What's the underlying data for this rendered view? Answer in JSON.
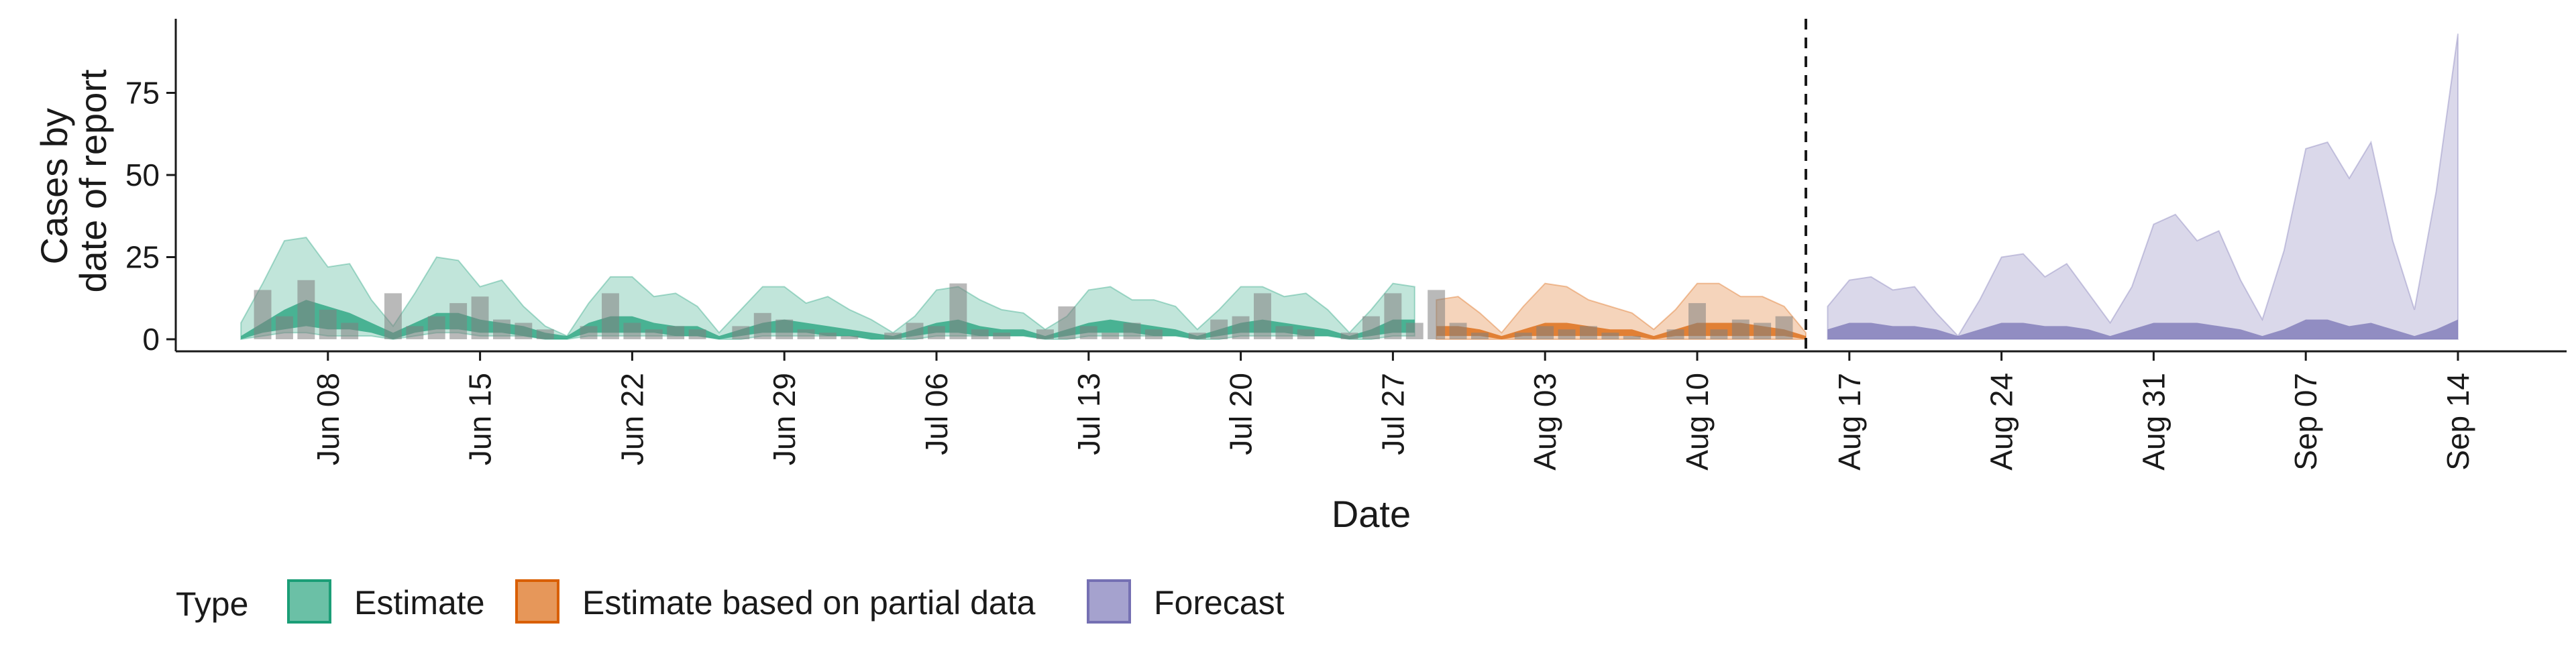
{
  "chart_data": {
    "type": "area",
    "xlabel": "Date",
    "ylabel": [
      "Cases by",
      "date of report"
    ],
    "ylim": [
      0,
      95
    ],
    "yticks": [
      0,
      25,
      50,
      75
    ],
    "x_start_date": "2020-06-04",
    "xlim": [
      "2020-06-01",
      "2020-09-19"
    ],
    "xticks": [
      "Jun 08",
      "Jun 15",
      "Jun 22",
      "Jun 29",
      "Jul 06",
      "Jul 13",
      "Jul 20",
      "Jul 27",
      "Aug 03",
      "Aug 10",
      "Aug 17",
      "Aug 24",
      "Aug 31",
      "Sep 07",
      "Sep 14"
    ],
    "xtick_dates": [
      "2020-06-08",
      "2020-06-15",
      "2020-06-22",
      "2020-06-29",
      "2020-07-06",
      "2020-07-13",
      "2020-07-20",
      "2020-07-27",
      "2020-08-03",
      "2020-08-10",
      "2020-08-17",
      "2020-08-24",
      "2020-08-31",
      "2020-09-07",
      "2020-09-14"
    ],
    "vline_date": "2020-08-15",
    "grid": false,
    "legend": {
      "title": "Type",
      "position": "bottom",
      "entries": [
        "Estimate",
        "Estimate based on partial data",
        "Forecast"
      ]
    },
    "colors": {
      "Estimate": "#1b9e77",
      "Estimate based on partial data": "#d95f02",
      "Forecast": "#7570b3",
      "bars": "#7f7f7f"
    },
    "series": [
      {
        "name": "Estimate",
        "x": [
          "2020-06-04",
          "2020-06-05",
          "2020-06-06",
          "2020-06-07",
          "2020-06-08",
          "2020-06-09",
          "2020-06-10",
          "2020-06-11",
          "2020-06-12",
          "2020-06-13",
          "2020-06-14",
          "2020-06-15",
          "2020-06-16",
          "2020-06-17",
          "2020-06-18",
          "2020-06-19",
          "2020-06-20",
          "2020-06-21",
          "2020-06-22",
          "2020-06-23",
          "2020-06-24",
          "2020-06-25",
          "2020-06-26",
          "2020-06-27",
          "2020-06-28",
          "2020-06-29",
          "2020-06-30",
          "2020-07-01",
          "2020-07-02",
          "2020-07-03",
          "2020-07-04",
          "2020-07-05",
          "2020-07-06",
          "2020-07-07",
          "2020-07-08",
          "2020-07-09",
          "2020-07-10",
          "2020-07-11",
          "2020-07-12",
          "2020-07-13",
          "2020-07-14",
          "2020-07-15",
          "2020-07-16",
          "2020-07-17",
          "2020-07-18",
          "2020-07-19",
          "2020-07-20",
          "2020-07-21",
          "2020-07-22",
          "2020-07-23",
          "2020-07-24",
          "2020-07-25",
          "2020-07-26",
          "2020-07-27",
          "2020-07-28"
        ],
        "upper": [
          5,
          17,
          30,
          31,
          22,
          23,
          12,
          4,
          14,
          25,
          24,
          16,
          18,
          10,
          4,
          1,
          11,
          19,
          19,
          13,
          14,
          10,
          2,
          9,
          16,
          16,
          11,
          13,
          9,
          6,
          2,
          7,
          15,
          16,
          12,
          9,
          8,
          3,
          7,
          15,
          16,
          12,
          12,
          10,
          3,
          9,
          16,
          16,
          13,
          14,
          9,
          2,
          9,
          17,
          16
        ],
        "lower": [
          0,
          1,
          2,
          2,
          1,
          1,
          1,
          0,
          1,
          2,
          2,
          1,
          1,
          1,
          0,
          0,
          1,
          1,
          1,
          1,
          1,
          1,
          0,
          0,
          1,
          1,
          1,
          1,
          1,
          0,
          0,
          0,
          1,
          1,
          1,
          1,
          1,
          0,
          0,
          1,
          1,
          1,
          1,
          1,
          0,
          0,
          1,
          1,
          1,
          1,
          1,
          0,
          0,
          1,
          1
        ],
        "inner_upper": [
          1,
          5,
          9,
          12,
          10,
          8,
          5,
          2,
          5,
          8,
          8,
          6,
          5,
          4,
          2,
          1,
          5,
          7,
          7,
          5,
          4,
          4,
          1,
          3,
          5,
          6,
          5,
          4,
          3,
          2,
          1,
          3,
          5,
          6,
          4,
          3,
          3,
          1,
          3,
          5,
          6,
          5,
          4,
          3,
          1,
          3,
          5,
          6,
          5,
          4,
          3,
          1,
          3,
          6,
          6
        ],
        "inner_lower": [
          0,
          2,
          3,
          4,
          3,
          3,
          2,
          0,
          2,
          3,
          3,
          2,
          2,
          1,
          0,
          0,
          2,
          2,
          2,
          2,
          1,
          1,
          0,
          1,
          2,
          2,
          2,
          1,
          1,
          0,
          0,
          1,
          2,
          2,
          1,
          1,
          1,
          0,
          1,
          2,
          2,
          2,
          1,
          1,
          0,
          1,
          2,
          2,
          2,
          1,
          1,
          0,
          1,
          2,
          2
        ]
      },
      {
        "name": "Estimate based on partial data",
        "x": [
          "2020-07-29",
          "2020-07-30",
          "2020-07-31",
          "2020-08-01",
          "2020-08-02",
          "2020-08-03",
          "2020-08-04",
          "2020-08-05",
          "2020-08-06",
          "2020-08-07",
          "2020-08-08",
          "2020-08-09",
          "2020-08-10",
          "2020-08-11",
          "2020-08-12",
          "2020-08-13",
          "2020-08-14",
          "2020-08-15"
        ],
        "upper": [
          12,
          13,
          8,
          2,
          10,
          17,
          16,
          12,
          10,
          8,
          3,
          9,
          17,
          17,
          13,
          13,
          10,
          2
        ],
        "lower": [
          0,
          0,
          0,
          0,
          0,
          0,
          0,
          0,
          0,
          0,
          0,
          0,
          0,
          0,
          0,
          0,
          0,
          0
        ],
        "inner_upper": [
          4,
          4,
          3,
          1,
          3,
          5,
          5,
          4,
          3,
          3,
          1,
          3,
          5,
          5,
          5,
          4,
          3,
          1
        ],
        "inner_lower": [
          1,
          1,
          1,
          0,
          1,
          1,
          1,
          1,
          1,
          1,
          0,
          1,
          1,
          1,
          1,
          1,
          1,
          0
        ]
      },
      {
        "name": "Forecast",
        "x": [
          "2020-08-16",
          "2020-08-17",
          "2020-08-18",
          "2020-08-19",
          "2020-08-20",
          "2020-08-21",
          "2020-08-22",
          "2020-08-23",
          "2020-08-24",
          "2020-08-25",
          "2020-08-26",
          "2020-08-27",
          "2020-08-28",
          "2020-08-29",
          "2020-08-30",
          "2020-08-31",
          "2020-09-01",
          "2020-09-02",
          "2020-09-03",
          "2020-09-04",
          "2020-09-05",
          "2020-09-06",
          "2020-09-07",
          "2020-09-08",
          "2020-09-09",
          "2020-09-10",
          "2020-09-11",
          "2020-09-12",
          "2020-09-13",
          "2020-09-14"
        ],
        "upper": [
          10,
          18,
          19,
          15,
          16,
          8,
          1,
          12,
          25,
          26,
          19,
          23,
          14,
          5,
          16,
          35,
          38,
          30,
          33,
          18,
          6,
          27,
          58,
          60,
          49,
          60,
          30,
          9,
          45,
          93
        ],
        "lower": [
          0,
          0,
          0,
          0,
          0,
          0,
          0,
          0,
          0,
          0,
          0,
          0,
          0,
          0,
          0,
          0,
          0,
          0,
          0,
          0,
          0,
          0,
          0,
          0,
          0,
          0,
          0,
          0,
          0,
          0
        ],
        "inner_upper": [
          3,
          5,
          5,
          4,
          4,
          3,
          1,
          3,
          5,
          5,
          4,
          4,
          3,
          1,
          3,
          5,
          5,
          5,
          4,
          3,
          1,
          3,
          6,
          6,
          4,
          5,
          3,
          1,
          3,
          6
        ],
        "inner_lower": [
          0,
          0,
          0,
          0,
          0,
          0,
          0,
          0,
          0,
          0,
          0,
          0,
          0,
          0,
          0,
          0,
          0,
          0,
          0,
          0,
          0,
          0,
          0,
          0,
          0,
          0,
          0,
          0,
          0,
          0
        ]
      }
    ],
    "observed_bars": {
      "x": [
        "2020-06-05",
        "2020-06-06",
        "2020-06-07",
        "2020-06-08",
        "2020-06-09",
        "2020-06-10",
        "2020-06-11",
        "2020-06-12",
        "2020-06-13",
        "2020-06-14",
        "2020-06-15",
        "2020-06-16",
        "2020-06-17",
        "2020-06-18",
        "2020-06-19",
        "2020-06-20",
        "2020-06-21",
        "2020-06-22",
        "2020-06-23",
        "2020-06-24",
        "2020-06-25",
        "2020-06-26",
        "2020-06-27",
        "2020-06-28",
        "2020-06-29",
        "2020-06-30",
        "2020-07-01",
        "2020-07-02",
        "2020-07-03",
        "2020-07-04",
        "2020-07-05",
        "2020-07-06",
        "2020-07-07",
        "2020-07-08",
        "2020-07-09",
        "2020-07-10",
        "2020-07-11",
        "2020-07-12",
        "2020-07-13",
        "2020-07-14",
        "2020-07-15",
        "2020-07-16",
        "2020-07-17",
        "2020-07-18",
        "2020-07-19",
        "2020-07-20",
        "2020-07-21",
        "2020-07-22",
        "2020-07-23",
        "2020-07-24",
        "2020-07-25",
        "2020-07-26",
        "2020-07-27",
        "2020-07-28",
        "2020-07-29",
        "2020-07-30",
        "2020-07-31",
        "2020-08-01",
        "2020-08-02",
        "2020-08-03",
        "2020-08-04",
        "2020-08-05",
        "2020-08-06",
        "2020-08-07",
        "2020-08-08",
        "2020-08-09",
        "2020-08-10",
        "2020-08-11",
        "2020-08-12",
        "2020-08-13",
        "2020-08-14"
      ],
      "values": [
        15,
        7,
        18,
        9,
        5,
        0,
        14,
        4,
        7,
        11,
        13,
        6,
        5,
        3,
        0,
        4,
        14,
        5,
        3,
        4,
        3,
        0,
        4,
        8,
        6,
        3,
        2,
        1,
        0,
        2,
        5,
        4,
        17,
        3,
        2,
        0,
        3,
        10,
        4,
        2,
        5,
        3,
        0,
        2,
        6,
        7,
        14,
        4,
        3,
        0,
        2,
        7,
        14,
        5,
        15,
        5,
        2,
        0,
        2,
        4,
        3,
        4,
        2,
        1,
        0,
        3,
        11,
        3,
        6,
        5,
        7
      ]
    }
  }
}
